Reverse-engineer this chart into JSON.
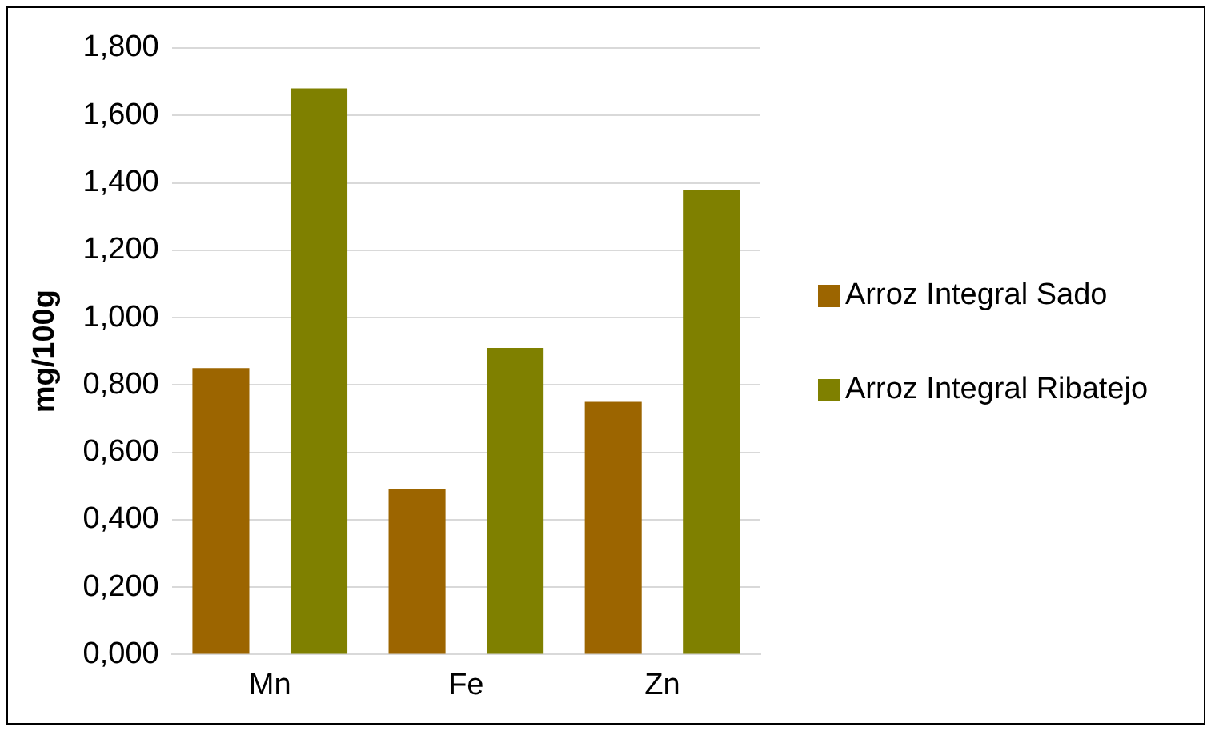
{
  "chart_data": {
    "type": "bar",
    "ylabel": "mg/100g",
    "categories": [
      "Mn",
      "Fe",
      "Zn"
    ],
    "series": [
      {
        "name": "Arroz Integral Sado",
        "color": "#9c6500",
        "values": [
          0.85,
          0.49,
          0.75
        ]
      },
      {
        "name": "Arroz Integral Ribatejo",
        "color": "#7f8000",
        "values": [
          1.68,
          0.91,
          1.38
        ]
      }
    ],
    "ylim": [
      0,
      1.8
    ],
    "yticks": [
      {
        "value": 0,
        "label": "0,000"
      },
      {
        "value": 0.2,
        "label": "0,200"
      },
      {
        "value": 0.4,
        "label": "0,400"
      },
      {
        "value": 0.6,
        "label": "0,600"
      },
      {
        "value": 0.8,
        "label": "0,800"
      },
      {
        "value": 1,
        "label": "1,000"
      },
      {
        "value": 1.2,
        "label": "1,200"
      },
      {
        "value": 1.4,
        "label": "1,400"
      },
      {
        "value": 1.6,
        "label": "1,600"
      },
      {
        "value": 1.8,
        "label": "1,800"
      }
    ],
    "grid": "y",
    "legend": "right"
  }
}
